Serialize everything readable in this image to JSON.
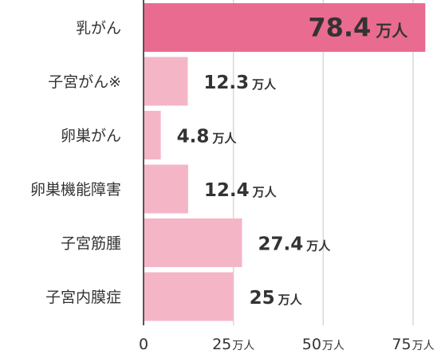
{
  "chart_data": {
    "type": "bar",
    "orientation": "horizontal",
    "categories": [
      "乳がん",
      "子宮がん※",
      "卵巣がん",
      "卵巣機能障害",
      "子宮筋腫",
      "子宮内膜症"
    ],
    "values": [
      78.4,
      12.3,
      4.8,
      12.4,
      27.4,
      25
    ],
    "value_labels": [
      "78.4",
      "12.3",
      "4.8",
      "12.4",
      "27.4",
      "25"
    ],
    "unit": "万人",
    "xlim": [
      0,
      80
    ],
    "ticks": [
      {
        "value": 0,
        "label": "0",
        "unit": ""
      },
      {
        "value": 25,
        "label": "25",
        "unit": "万人"
      },
      {
        "value": 50,
        "label": "50",
        "unit": "万人"
      },
      {
        "value": 75,
        "label": "75",
        "unit": "万人"
      }
    ],
    "grid": true,
    "colors": {
      "highlight_bar": "#ea6b90",
      "bar": "#f4b6c7",
      "highlight_text": "#ffffff",
      "text": "#333333",
      "grid": "#d8d8d8"
    },
    "highlight_index": 0
  }
}
